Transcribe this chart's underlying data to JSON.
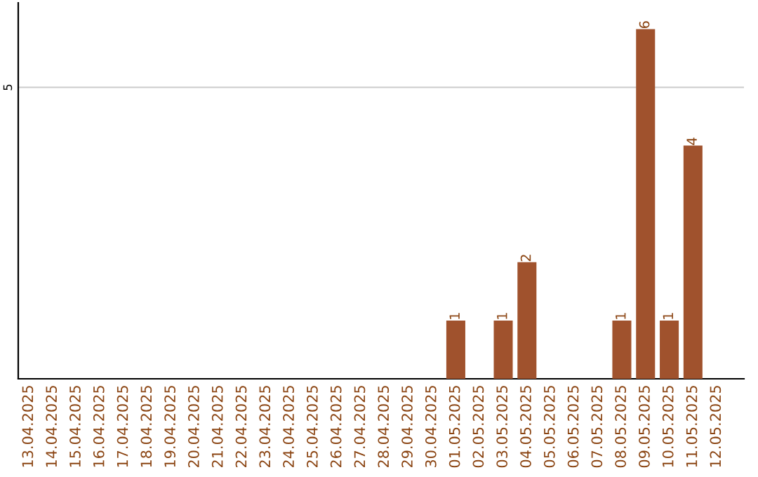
{
  "chart_data": {
    "type": "bar",
    "categories": [
      "13.04.2025",
      "14.04.2025",
      "15.04.2025",
      "16.04.2025",
      "17.04.2025",
      "18.04.2025",
      "19.04.2025",
      "20.04.2025",
      "21.04.2025",
      "22.04.2025",
      "23.04.2025",
      "24.04.2025",
      "25.04.2025",
      "26.04.2025",
      "27.04.2025",
      "28.04.2025",
      "29.04.2025",
      "30.04.2025",
      "01.05.2025",
      "02.05.2025",
      "03.05.2025",
      "04.05.2025",
      "05.05.2025",
      "06.05.2025",
      "07.05.2025",
      "08.05.2025",
      "09.05.2025",
      "10.05.2025",
      "11.05.2025",
      "12.05.2025"
    ],
    "values": [
      null,
      null,
      null,
      null,
      null,
      null,
      null,
      null,
      null,
      null,
      null,
      null,
      null,
      null,
      null,
      null,
      null,
      null,
      1,
      null,
      1,
      2,
      null,
      null,
      null,
      1,
      6,
      1,
      4,
      null
    ],
    "data_labels": true,
    "color": "#a0522d",
    "ylim": [
      0,
      6.45
    ],
    "yticks": [
      5
    ],
    "grid": "y"
  }
}
